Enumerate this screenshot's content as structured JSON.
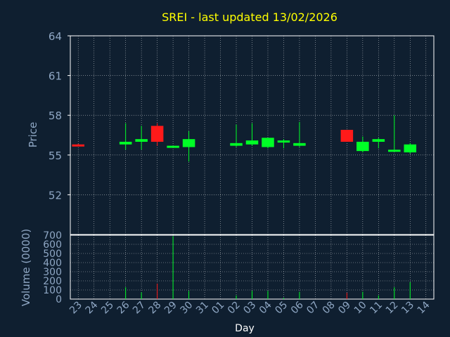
{
  "chart_data": {
    "type": "candlestick",
    "title": "SREI - last updated 13/02/2026",
    "xlabel": "Day",
    "price_panel": {
      "ylabel": "Price",
      "ylim": [
        49,
        64
      ],
      "yticks": [
        52,
        55,
        58,
        61,
        64
      ],
      "grid": true
    },
    "volume_panel": {
      "ylabel": "Volume (0000)",
      "ylim": [
        0,
        700
      ],
      "yticks": [
        0,
        100,
        200,
        300,
        400,
        500,
        600,
        700
      ],
      "grid": true
    },
    "day_labels": [
      "23",
      "24",
      "25",
      "26",
      "27",
      "28",
      "29",
      "30",
      "31",
      "01",
      "02",
      "03",
      "04",
      "05",
      "06",
      "07",
      "08",
      "09",
      "10",
      "11",
      "12",
      "13",
      "14"
    ],
    "candles": [
      {
        "day": "23",
        "open": 55.8,
        "close": 55.8,
        "high": 55.85,
        "low": 55.75,
        "volume": 0,
        "direction": "down"
      },
      {
        "day": "26",
        "open": 55.8,
        "close": 56.0,
        "high": 57.4,
        "low": 55.4,
        "volume": 130,
        "direction": "up"
      },
      {
        "day": "27",
        "open": 56.0,
        "close": 56.2,
        "high": 57.2,
        "low": 55.4,
        "volume": 75,
        "direction": "up"
      },
      {
        "day": "28",
        "open": 57.2,
        "close": 56.0,
        "high": 57.4,
        "low": 55.7,
        "volume": 170,
        "direction": "down"
      },
      {
        "day": "29",
        "open": 55.6,
        "close": 55.7,
        "high": 55.7,
        "low": 55.6,
        "volume": 690,
        "direction": "up"
      },
      {
        "day": "30",
        "open": 55.6,
        "close": 56.2,
        "high": 56.8,
        "low": 54.5,
        "volume": 90,
        "direction": "up"
      },
      {
        "day": "02",
        "open": 55.7,
        "close": 55.9,
        "high": 57.3,
        "low": 55.6,
        "volume": 40,
        "direction": "up"
      },
      {
        "day": "03",
        "open": 55.8,
        "close": 56.1,
        "high": 57.4,
        "low": 55.7,
        "volume": 90,
        "direction": "up"
      },
      {
        "day": "04",
        "open": 55.6,
        "close": 56.3,
        "high": 56.3,
        "low": 55.5,
        "volume": 90,
        "direction": "up"
      },
      {
        "day": "05",
        "open": 56.0,
        "close": 56.1,
        "high": 56.2,
        "low": 55.5,
        "volume": 15,
        "direction": "up"
      },
      {
        "day": "06",
        "open": 55.7,
        "close": 55.9,
        "high": 57.5,
        "low": 55.6,
        "volume": 80,
        "direction": "up"
      },
      {
        "day": "09",
        "open": 56.9,
        "close": 56.0,
        "high": 56.9,
        "low": 56.0,
        "volume": 70,
        "direction": "down"
      },
      {
        "day": "10",
        "open": 55.3,
        "close": 56.0,
        "high": 56.4,
        "low": 55.2,
        "volume": 80,
        "direction": "up"
      },
      {
        "day": "11",
        "open": 56.0,
        "close": 56.2,
        "high": 56.3,
        "low": 55.5,
        "volume": 40,
        "direction": "up"
      },
      {
        "day": "12",
        "open": 55.3,
        "close": 55.4,
        "high": 58.0,
        "low": 55.3,
        "volume": 130,
        "direction": "up"
      },
      {
        "day": "13",
        "open": 55.2,
        "close": 55.8,
        "high": 55.9,
        "low": 55.1,
        "volume": 185,
        "direction": "up"
      }
    ],
    "colors": {
      "background": "#0f1f30",
      "plot": "#0f1f30",
      "axis": "#ffffff",
      "grid": "#ffffff",
      "up": "#00ff26",
      "down": "#ff1a1a",
      "title": "#ffff00",
      "label": "#8fa7c4"
    }
  }
}
